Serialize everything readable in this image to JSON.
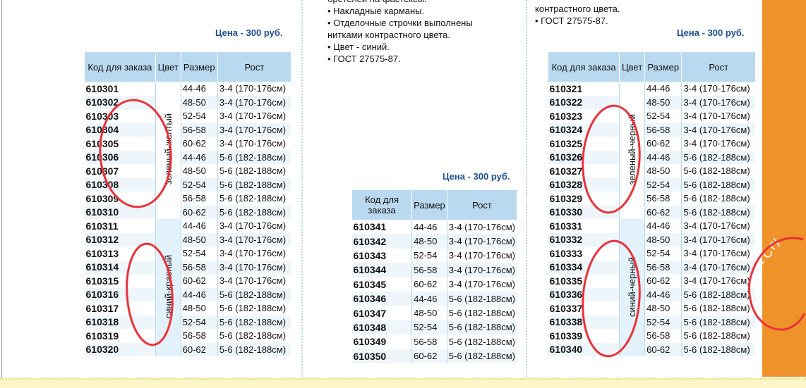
{
  "left": {
    "price": "Цена - 300 руб.",
    "header": [
      "Код для заказа",
      "Цвет",
      "Размер",
      "Рост"
    ],
    "colors": [
      "зеленый-желтый",
      "синий-красный"
    ],
    "rows": [
      [
        "610301",
        "44-46",
        "3-4 (170-176см)"
      ],
      [
        "610302",
        "48-50",
        "3-4 (170-176см)"
      ],
      [
        "610303",
        "52-54",
        "3-4 (170-176см)"
      ],
      [
        "610304",
        "56-58",
        "3-4 (170-176см)"
      ],
      [
        "610305",
        "60-62",
        "3-4 (170-176см)"
      ],
      [
        "610306",
        "44-46",
        "5-6 (182-188см)"
      ],
      [
        "610307",
        "48-50",
        "5-6 (182-188см)"
      ],
      [
        "610308",
        "52-54",
        "5-6 (182-188см)"
      ],
      [
        "610309",
        "56-58",
        "5-6 (182-188см)"
      ],
      [
        "610310",
        "60-62",
        "5-6 (182-188см)"
      ],
      [
        "610311",
        "44-46",
        "3-4 (170-176см)"
      ],
      [
        "610312",
        "48-50",
        "3-4 (170-176см)"
      ],
      [
        "610313",
        "52-54",
        "3-4 (170-176см)"
      ],
      [
        "610314",
        "56-58",
        "3-4 (170-176см)"
      ],
      [
        "610315",
        "60-62",
        "3-4 (170-176см)"
      ],
      [
        "610316",
        "44-46",
        "5-6 (182-188см)"
      ],
      [
        "610317",
        "48-50",
        "5-6 (182-188см)"
      ],
      [
        "610318",
        "52-54",
        "5-6 (182-188см)"
      ],
      [
        "610319",
        "56-58",
        "5-6 (182-188см)"
      ],
      [
        "610320",
        "60-62",
        "5-6 (182-188см)"
      ]
    ]
  },
  "middle": {
    "text": [
      "бретелей на фастексы.",
      "• Накладные карманы.",
      "• Отделочные строчки выполнены",
      "нитками контрастного цвета.",
      "• Цвет - синий.",
      "• ГОСТ 27575-87."
    ],
    "price": "Цена - 300 руб.",
    "header": [
      "Код для заказа",
      "Размер",
      "Рост"
    ],
    "rows": [
      [
        "610341",
        "44-46",
        "3-4 (170-176см)"
      ],
      [
        "610342",
        "48-50",
        "3-4 (170-176см)"
      ],
      [
        "610343",
        "52-54",
        "3-4 (170-176см)"
      ],
      [
        "610344",
        "56-58",
        "3-4 (170-176см)"
      ],
      [
        "610345",
        "60-62",
        "3-4 (170-176см)"
      ],
      [
        "610346",
        "44-46",
        "5-6 (182-188см)"
      ],
      [
        "610347",
        "48-50",
        "5-6 (182-188см)"
      ],
      [
        "610348",
        "52-54",
        "5-6 (182-188см)"
      ],
      [
        "610349",
        "56-58",
        "5-6 (182-188см)"
      ],
      [
        "610350",
        "60-62",
        "5-6 (182-188см)"
      ]
    ]
  },
  "right": {
    "text": [
      "контрастного цвета.",
      "• ГОСТ 27575-87."
    ],
    "price": "Цена - 300 руб.",
    "header": [
      "Код для заказа",
      "Цвет",
      "Размер",
      "Рост"
    ],
    "colors": [
      "зеленый-черный",
      "синий-черный"
    ],
    "rows": [
      [
        "610321",
        "44-46",
        "3-4 (170-176см)"
      ],
      [
        "610322",
        "48-50",
        "3-4 (170-176см)"
      ],
      [
        "610323",
        "52-54",
        "3-4 (170-176см)"
      ],
      [
        "610324",
        "56-58",
        "3-4 (170-176см)"
      ],
      [
        "610325",
        "60-62",
        "3-4 (170-176см)"
      ],
      [
        "610326",
        "44-46",
        "5-6 (182-188см)"
      ],
      [
        "610327",
        "48-50",
        "5-6 (182-188см)"
      ],
      [
        "610328",
        "52-54",
        "5-6 (182-188см)"
      ],
      [
        "610329",
        "56-58",
        "5-6 (182-188см)"
      ],
      [
        "610330",
        "60-62",
        "5-6 (182-188см)"
      ],
      [
        "610331",
        "44-46",
        "3-4 (170-176см)"
      ],
      [
        "610332",
        "48-50",
        "3-4 (170-176см)"
      ],
      [
        "610333",
        "52-54",
        "3-4 (170-176см)"
      ],
      [
        "610334",
        "56-58",
        "3-4 (170-176см)"
      ],
      [
        "610335",
        "60-62",
        "3-4 (170-176см)"
      ],
      [
        "610336",
        "44-46",
        "5-6 (182-188см)"
      ],
      [
        "610337",
        "48-50",
        "5-6 (182-188см)"
      ],
      [
        "610338",
        "52-54",
        "5-6 (182-188см)"
      ],
      [
        "610339",
        "56-58",
        "5-6 (182-188см)"
      ],
      [
        "610340",
        "60-62",
        "5-6 (182-188см)"
      ]
    ]
  },
  "side": "- Сту"
}
